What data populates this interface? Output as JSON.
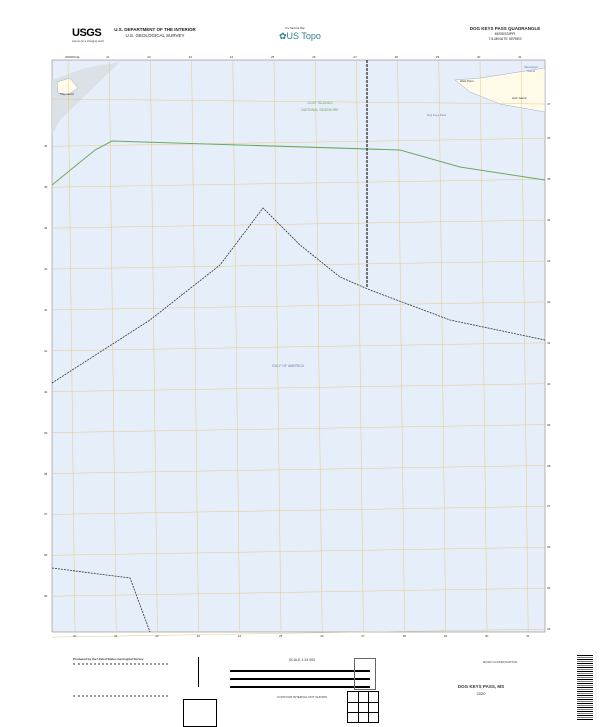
{
  "header": {
    "agency_logo": "USGS",
    "agency_tagline": "science for a changing world",
    "department": "U.S. DEPARTMENT OF THE INTERIOR",
    "survey": "U.S. GEOLOGICAL SURVEY",
    "product_logo": "US Topo",
    "product_tagline": "The National Map",
    "quadrangle": "DOG KEYS PASS QUADRANGLE",
    "state": "MISSISSIPPI",
    "series": "7.5-MINUTE SERIES"
  },
  "map": {
    "labels": {
      "park": "GULF ISLANDS",
      "park2": "NATIONAL SEASHORE",
      "water": "GULF OF AMERICA",
      "west_point": "West Point",
      "horn_island": "Horn Island",
      "dog_keys": "Dog Keys Pass",
      "mississippi_sound": "Mississippi Sound",
      "ship_island": "Ship Island"
    },
    "top_easting_labels": [
      "300000mE",
      "21",
      "22",
      "23",
      "24",
      "25",
      "26",
      "27",
      "28",
      "29",
      "30",
      "31"
    ],
    "bottom_easting_labels": [
      "20",
      "21",
      "22",
      "23",
      "24",
      "25",
      "26",
      "27",
      "28",
      "29",
      "30",
      "31"
    ],
    "left_northing_labels": [
      "46",
      "45",
      "44",
      "43",
      "42",
      "41",
      "40",
      "39",
      "38",
      "37",
      "36",
      "35"
    ],
    "right_northing_labels": [
      "47",
      "46",
      "45",
      "44",
      "43",
      "42",
      "41",
      "40",
      "39",
      "38",
      "37",
      "36",
      "35",
      "34",
      "33"
    ],
    "colors": {
      "water": "#e6eef9",
      "grid": "#e3c98a",
      "boundary_green": "#6aa860",
      "land": "#fffbe8"
    }
  },
  "footer": {
    "producer": "Produced by the United States Geological Survey",
    "scale": "SCALE 1:24 000",
    "contour_note": "CONTOUR INTERVAL NOT SHOWN",
    "road_classification": "ROAD CLASSIFICATION",
    "title": "DOG KEYS PASS, MS",
    "year": "2020"
  }
}
